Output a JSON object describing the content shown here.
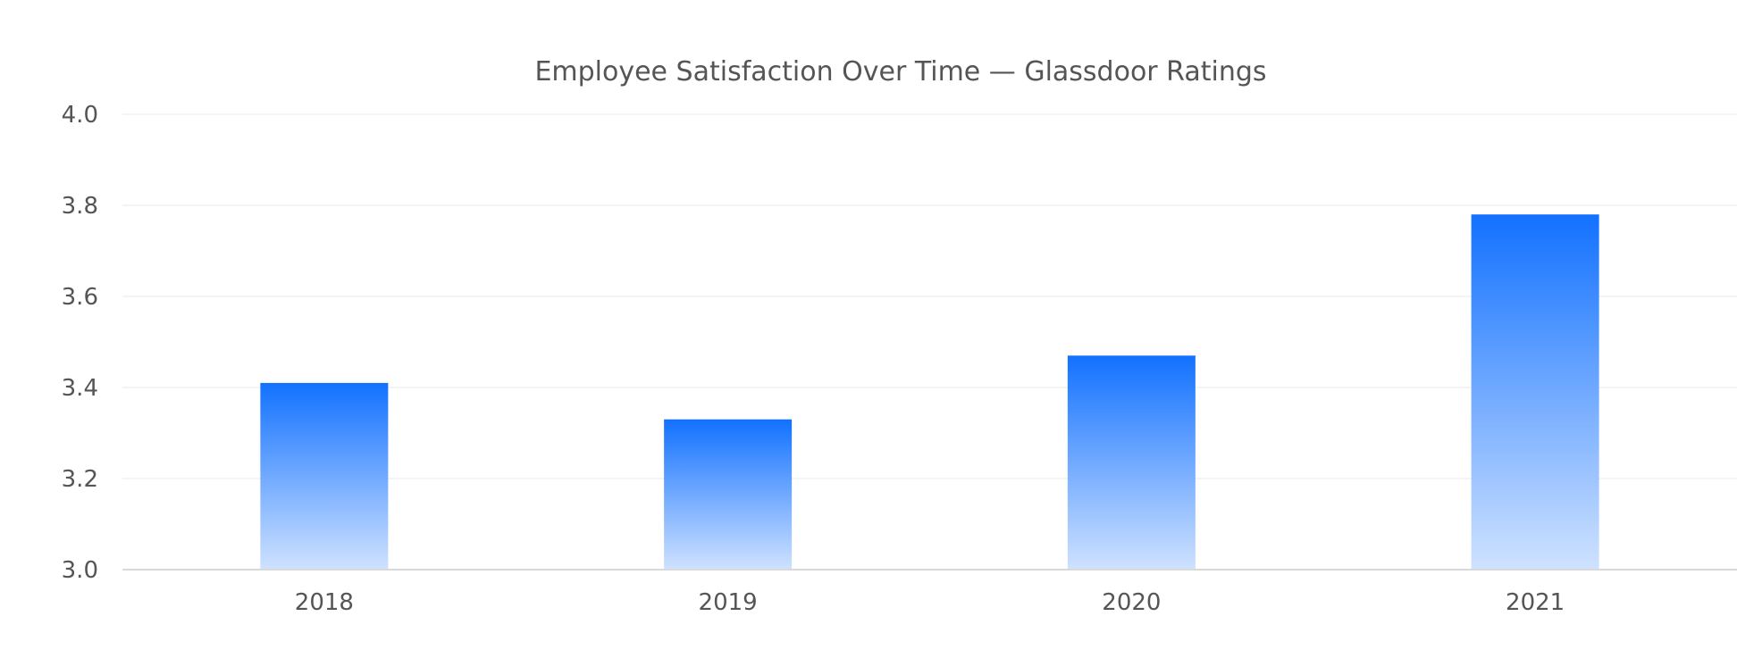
{
  "chart_data": {
    "type": "bar",
    "title": "Employee Satisfaction Over Time — Glassdoor Ratings",
    "xlabel": "",
    "ylabel": "",
    "categories": [
      "2018",
      "2019",
      "2020",
      "2021"
    ],
    "values": [
      3.41,
      3.33,
      3.47,
      3.78
    ],
    "ylim": [
      3.0,
      4.0
    ],
    "yticks": [
      "3.0",
      "3.2",
      "3.4",
      "3.6",
      "3.8",
      "4.0"
    ],
    "grid": true,
    "legend": "none",
    "colors": {
      "bar_top": "#1271ff",
      "bar_bottom": "#cfe2ff",
      "gridline": "#f0f0f0",
      "axis": "#d9d9d9",
      "text": "#555555"
    }
  }
}
